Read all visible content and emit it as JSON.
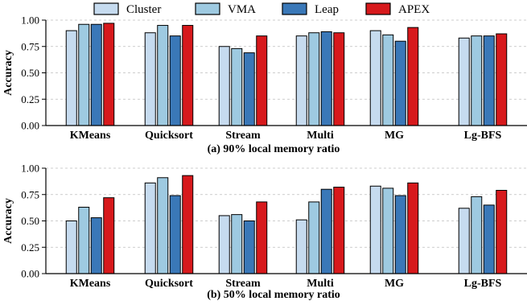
{
  "chart_data": [
    {
      "type": "bar",
      "caption": "(a) 90% local memory ratio",
      "ylabel": "Accuracy",
      "ylim": [
        0,
        1
      ],
      "yticks": [
        "0.00",
        "0.25",
        "0.50",
        "0.75",
        "1.00"
      ],
      "grid": "horizontal dashed",
      "categories": [
        "KMeans",
        "Quicksort",
        "Stream",
        "Multi",
        "MG",
        "Lg-BFS"
      ],
      "series": [
        {
          "name": "Cluster",
          "color": "#c6dbef",
          "values": [
            0.9,
            0.88,
            0.75,
            0.85,
            0.9,
            0.83
          ]
        },
        {
          "name": "VMA",
          "color": "#9ecae1",
          "values": [
            0.96,
            0.95,
            0.73,
            0.88,
            0.86,
            0.85
          ]
        },
        {
          "name": "Leap",
          "color": "#3a78b8",
          "values": [
            0.96,
            0.85,
            0.69,
            0.89,
            0.8,
            0.85
          ]
        },
        {
          "name": "APEX",
          "color": "#d7191c",
          "values": [
            0.97,
            0.95,
            0.85,
            0.88,
            0.93,
            0.87
          ]
        }
      ]
    },
    {
      "type": "bar",
      "caption": "(b) 50% local memory ratio",
      "ylabel": "Accuracy",
      "ylim": [
        0,
        1
      ],
      "yticks": [
        "0.00",
        "0.25",
        "0.50",
        "0.75",
        "1.00"
      ],
      "grid": "horizontal dashed",
      "categories": [
        "KMeans",
        "Quicksort",
        "Stream",
        "Multi",
        "MG",
        "Lg-BFS"
      ],
      "series": [
        {
          "name": "Cluster",
          "color": "#c6dbef",
          "values": [
            0.5,
            0.86,
            0.55,
            0.51,
            0.83,
            0.62
          ]
        },
        {
          "name": "VMA",
          "color": "#9ecae1",
          "values": [
            0.63,
            0.91,
            0.56,
            0.68,
            0.81,
            0.73
          ]
        },
        {
          "name": "Leap",
          "color": "#3a78b8",
          "values": [
            0.53,
            0.74,
            0.5,
            0.8,
            0.74,
            0.65
          ]
        },
        {
          "name": "APEX",
          "color": "#d7191c",
          "values": [
            0.72,
            0.93,
            0.68,
            0.82,
            0.86,
            0.79
          ]
        }
      ]
    }
  ],
  "legend": {
    "position": "top-center",
    "items": [
      {
        "label": "Cluster",
        "color": "#c6dbef"
      },
      {
        "label": "VMA",
        "color": "#9ecae1"
      },
      {
        "label": "Leap",
        "color": "#3a78b8"
      },
      {
        "label": "APEX",
        "color": "#d7191c"
      }
    ]
  }
}
